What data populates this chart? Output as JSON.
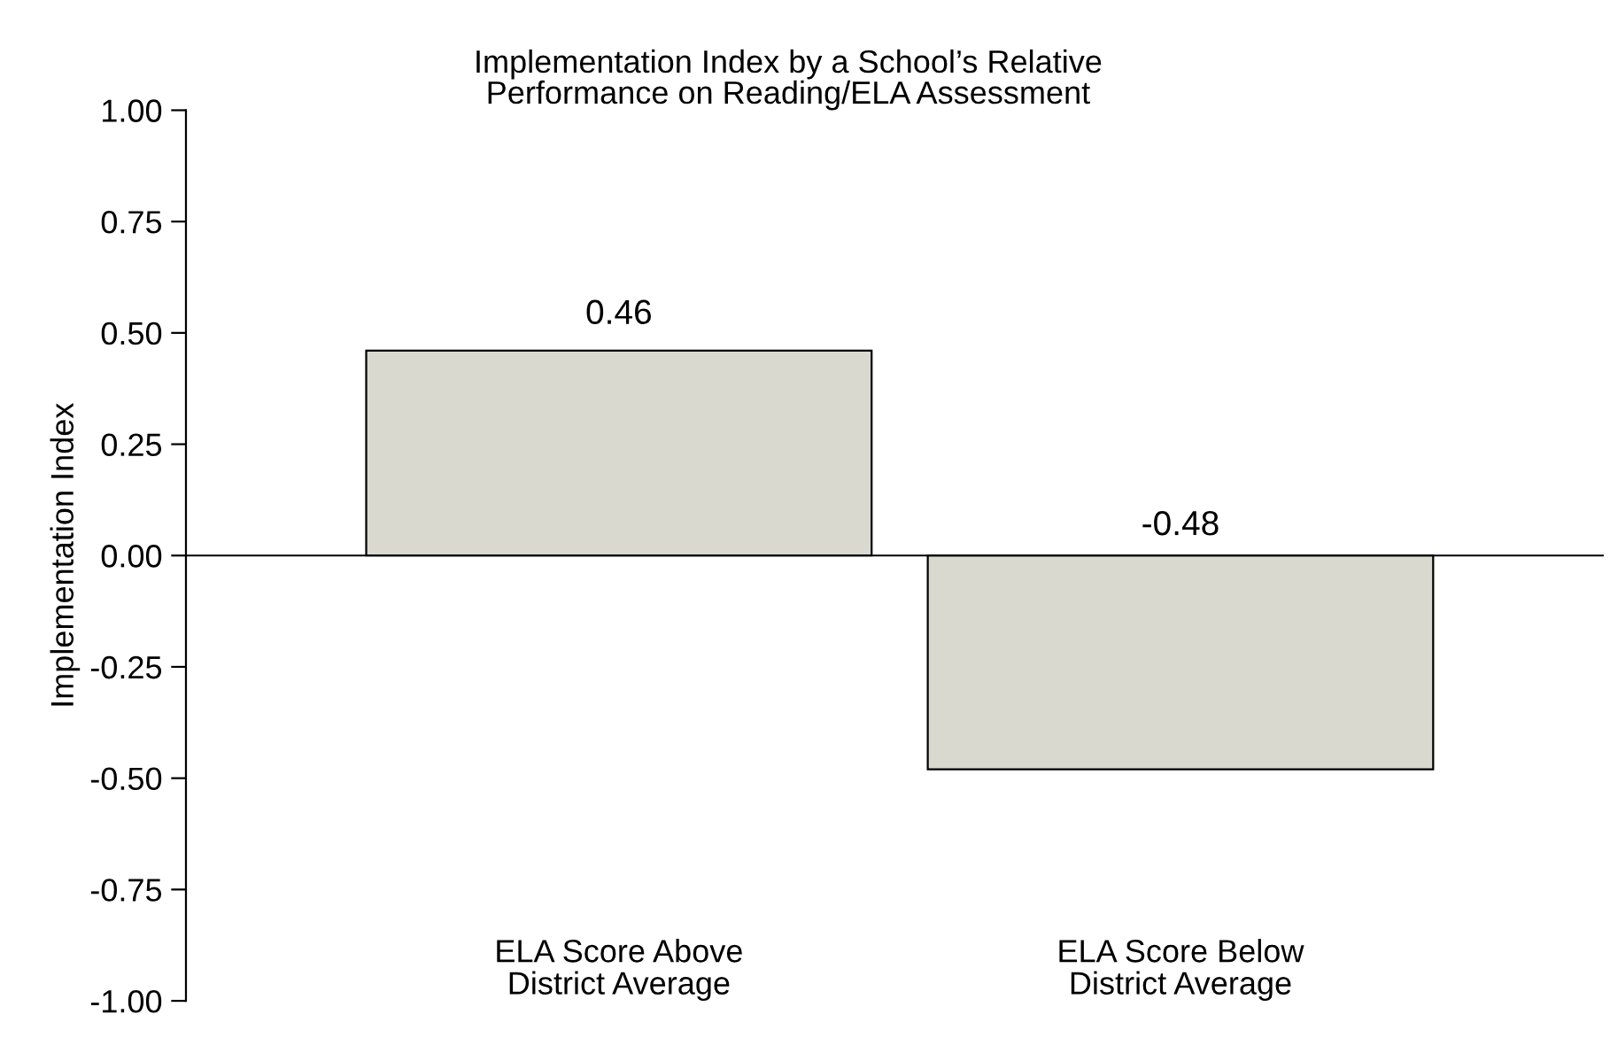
{
  "chart_data": {
    "type": "bar",
    "title": "Implementation Index by a School’s Relative\nPerformance on Reading/ELA Assessment",
    "ylabel": "Implementation Index",
    "categories": [
      "ELA Score Above\nDistrict Average",
      "ELA Score Below\nDistrict Average"
    ],
    "values": [
      0.46,
      -0.48
    ],
    "color": "#d9d9d0",
    "data_labels": true,
    "ylim": [
      -1.0,
      1.0
    ],
    "yticks": [
      {
        "value": -1.0,
        "label": "-1.00"
      },
      {
        "value": -0.75,
        "label": "-0.75"
      },
      {
        "value": -0.5,
        "label": "-0.50"
      },
      {
        "value": -0.25,
        "label": "-0.25"
      },
      {
        "value": 0.0,
        "label": "0.00"
      },
      {
        "value": 0.25,
        "label": "0.25"
      },
      {
        "value": 0.5,
        "label": "0.50"
      },
      {
        "value": 0.75,
        "label": "0.75"
      },
      {
        "value": 1.0,
        "label": "1.00"
      }
    ],
    "legend": false
  }
}
